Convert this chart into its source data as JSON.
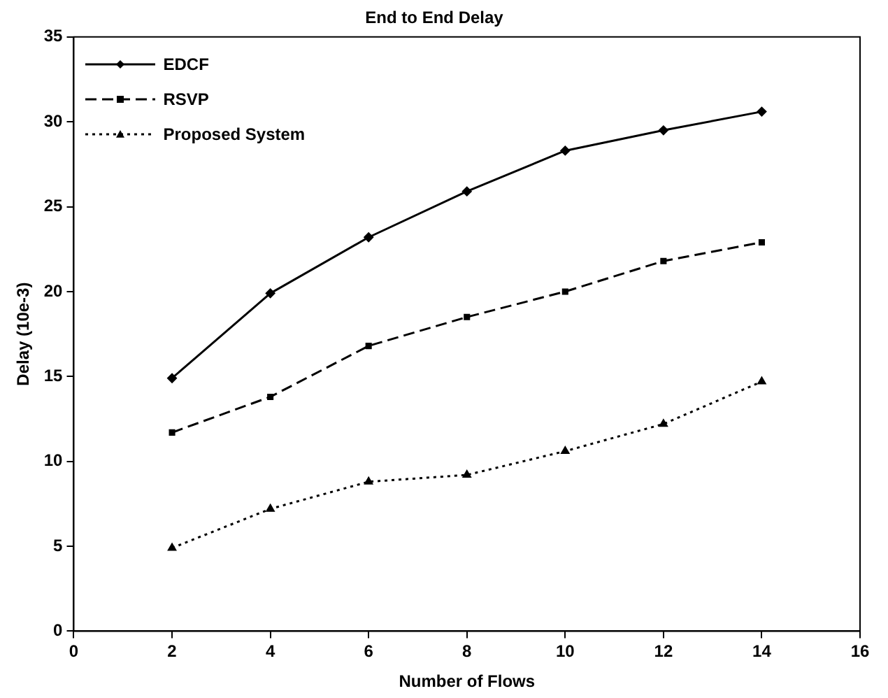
{
  "chart_data": {
    "type": "line",
    "title": "End to End Delay",
    "xlabel": "Number of Flows",
    "ylabel": "Delay (10e-3)",
    "x": [
      2,
      4,
      6,
      8,
      10,
      12,
      14
    ],
    "xlim": [
      0,
      16
    ],
    "xticks": [
      0,
      2,
      4,
      6,
      8,
      10,
      12,
      14,
      16
    ],
    "ylim": [
      0,
      35
    ],
    "yticks": [
      0,
      5,
      10,
      15,
      20,
      25,
      30,
      35
    ],
    "grid": false,
    "legend": "top left",
    "series": [
      {
        "name": "EDCF",
        "color": "#000000",
        "marker": "diamond",
        "line_style": "solid",
        "values": [
          14.9,
          19.9,
          23.2,
          25.9,
          28.3,
          29.5,
          30.6
        ]
      },
      {
        "name": "RSVP",
        "color": "#000000",
        "marker": "square",
        "line_style": "dashed",
        "values": [
          11.7,
          13.8,
          16.8,
          18.5,
          20.0,
          21.8,
          22.9
        ]
      },
      {
        "name": "Proposed System",
        "color": "#000000",
        "marker": "triangle",
        "line_style": "dotted",
        "values": [
          4.9,
          7.2,
          8.8,
          9.2,
          10.6,
          12.2,
          14.7
        ]
      }
    ]
  }
}
